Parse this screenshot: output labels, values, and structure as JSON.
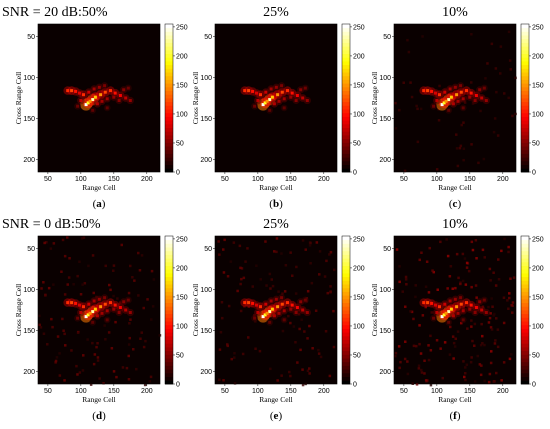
{
  "chart_data": [
    {
      "type": "heatmap",
      "title": "SNR = 20 dB:50%",
      "caption_letter": "a",
      "xlabel": "Range Cell",
      "ylabel": "Cross Range Cell",
      "xticks": [
        50,
        100,
        150,
        200
      ],
      "yticks": [
        50,
        100,
        150,
        200
      ],
      "xlim": [
        35,
        220
      ],
      "ylim": [
        35,
        215
      ],
      "colorbar_ticks": [
        0,
        50,
        100,
        150,
        200,
        250
      ],
      "colorbar_range": [
        0,
        255
      ],
      "colormap": "hot",
      "noise_level": 0
    },
    {
      "type": "heatmap",
      "title": "25%",
      "caption_letter": "b",
      "xlabel": "Range Cell",
      "ylabel": "Cross Range Cell",
      "xticks": [
        50,
        100,
        150,
        200
      ],
      "yticks": [
        50,
        100,
        150,
        200
      ],
      "xlim": [
        35,
        220
      ],
      "ylim": [
        35,
        215
      ],
      "colorbar_ticks": [
        0,
        50,
        100,
        150,
        200,
        250
      ],
      "colorbar_range": [
        0,
        255
      ],
      "colormap": "hot",
      "noise_level": 0
    },
    {
      "type": "heatmap",
      "title": "10%",
      "caption_letter": "c",
      "xlabel": "Range Cell",
      "ylabel": "Cross Range Cell",
      "xticks": [
        50,
        100,
        150,
        200
      ],
      "yticks": [
        50,
        100,
        150,
        200
      ],
      "xlim": [
        35,
        220
      ],
      "ylim": [
        35,
        215
      ],
      "colorbar_ticks": [
        0,
        50,
        100,
        150,
        200,
        250
      ],
      "colorbar_range": [
        0,
        255
      ],
      "colormap": "hot",
      "noise_level": 1
    },
    {
      "type": "heatmap",
      "title": "SNR = 0 dB:50%",
      "caption_letter": "d",
      "xlabel": "Range Cell",
      "ylabel": "Cross Range Cell",
      "xticks": [
        50,
        100,
        150,
        200
      ],
      "yticks": [
        50,
        100,
        150,
        200
      ],
      "xlim": [
        35,
        220
      ],
      "ylim": [
        35,
        215
      ],
      "colorbar_ticks": [
        0,
        50,
        100,
        150,
        200,
        250
      ],
      "colorbar_range": [
        0,
        255
      ],
      "colormap": "hot",
      "noise_level": 2
    },
    {
      "type": "heatmap",
      "title": "25%",
      "caption_letter": "e",
      "xlabel": "Range Cell",
      "ylabel": "Cross Range Cell",
      "xticks": [
        50,
        100,
        150,
        200
      ],
      "yticks": [
        50,
        100,
        150,
        200
      ],
      "xlim": [
        35,
        220
      ],
      "ylim": [
        35,
        215
      ],
      "colorbar_ticks": [
        0,
        50,
        100,
        150,
        200,
        250
      ],
      "colorbar_range": [
        0,
        255
      ],
      "colormap": "hot",
      "noise_level": 2
    },
    {
      "type": "heatmap",
      "title": "10%",
      "caption_letter": "f",
      "xlabel": "Range Cell",
      "ylabel": "Cross Range Cell",
      "xticks": [
        50,
        100,
        150,
        200
      ],
      "yticks": [
        50,
        100,
        150,
        200
      ],
      "xlim": [
        35,
        220
      ],
      "ylim": [
        35,
        215
      ],
      "colorbar_ticks": [
        0,
        50,
        100,
        150,
        200,
        250
      ],
      "colorbar_range": [
        0,
        255
      ],
      "colormap": "hot",
      "noise_level": 3
    }
  ],
  "scatterers": [
    {
      "x": 108,
      "y": 133,
      "v": 255
    },
    {
      "x": 111,
      "y": 131,
      "v": 200
    },
    {
      "x": 118,
      "y": 127,
      "v": 235
    },
    {
      "x": 122,
      "y": 124,
      "v": 170
    },
    {
      "x": 114,
      "y": 129,
      "v": 150
    },
    {
      "x": 130,
      "y": 121,
      "v": 150
    },
    {
      "x": 137,
      "y": 118,
      "v": 120
    },
    {
      "x": 145,
      "y": 116,
      "v": 110
    },
    {
      "x": 152,
      "y": 119,
      "v": 100
    },
    {
      "x": 160,
      "y": 122,
      "v": 90
    },
    {
      "x": 168,
      "y": 125,
      "v": 70
    },
    {
      "x": 175,
      "y": 128,
      "v": 55
    },
    {
      "x": 80,
      "y": 116,
      "v": 110
    },
    {
      "x": 86,
      "y": 116,
      "v": 120
    },
    {
      "x": 92,
      "y": 117,
      "v": 100
    },
    {
      "x": 98,
      "y": 119,
      "v": 80
    },
    {
      "x": 104,
      "y": 121,
      "v": 110
    },
    {
      "x": 100,
      "y": 128,
      "v": 70
    },
    {
      "x": 125,
      "y": 132,
      "v": 65
    },
    {
      "x": 132,
      "y": 129,
      "v": 60
    },
    {
      "x": 140,
      "y": 126,
      "v": 60
    },
    {
      "x": 150,
      "y": 124,
      "v": 55
    },
    {
      "x": 158,
      "y": 128,
      "v": 50
    },
    {
      "x": 112,
      "y": 118,
      "v": 75
    },
    {
      "x": 120,
      "y": 114,
      "v": 60
    },
    {
      "x": 128,
      "y": 112,
      "v": 55
    },
    {
      "x": 136,
      "y": 110,
      "v": 45
    },
    {
      "x": 165,
      "y": 115,
      "v": 50
    },
    {
      "x": 172,
      "y": 113,
      "v": 40
    },
    {
      "x": 95,
      "y": 135,
      "v": 40
    },
    {
      "x": 140,
      "y": 137,
      "v": 35
    },
    {
      "x": 118,
      "y": 140,
      "v": 35
    }
  ]
}
